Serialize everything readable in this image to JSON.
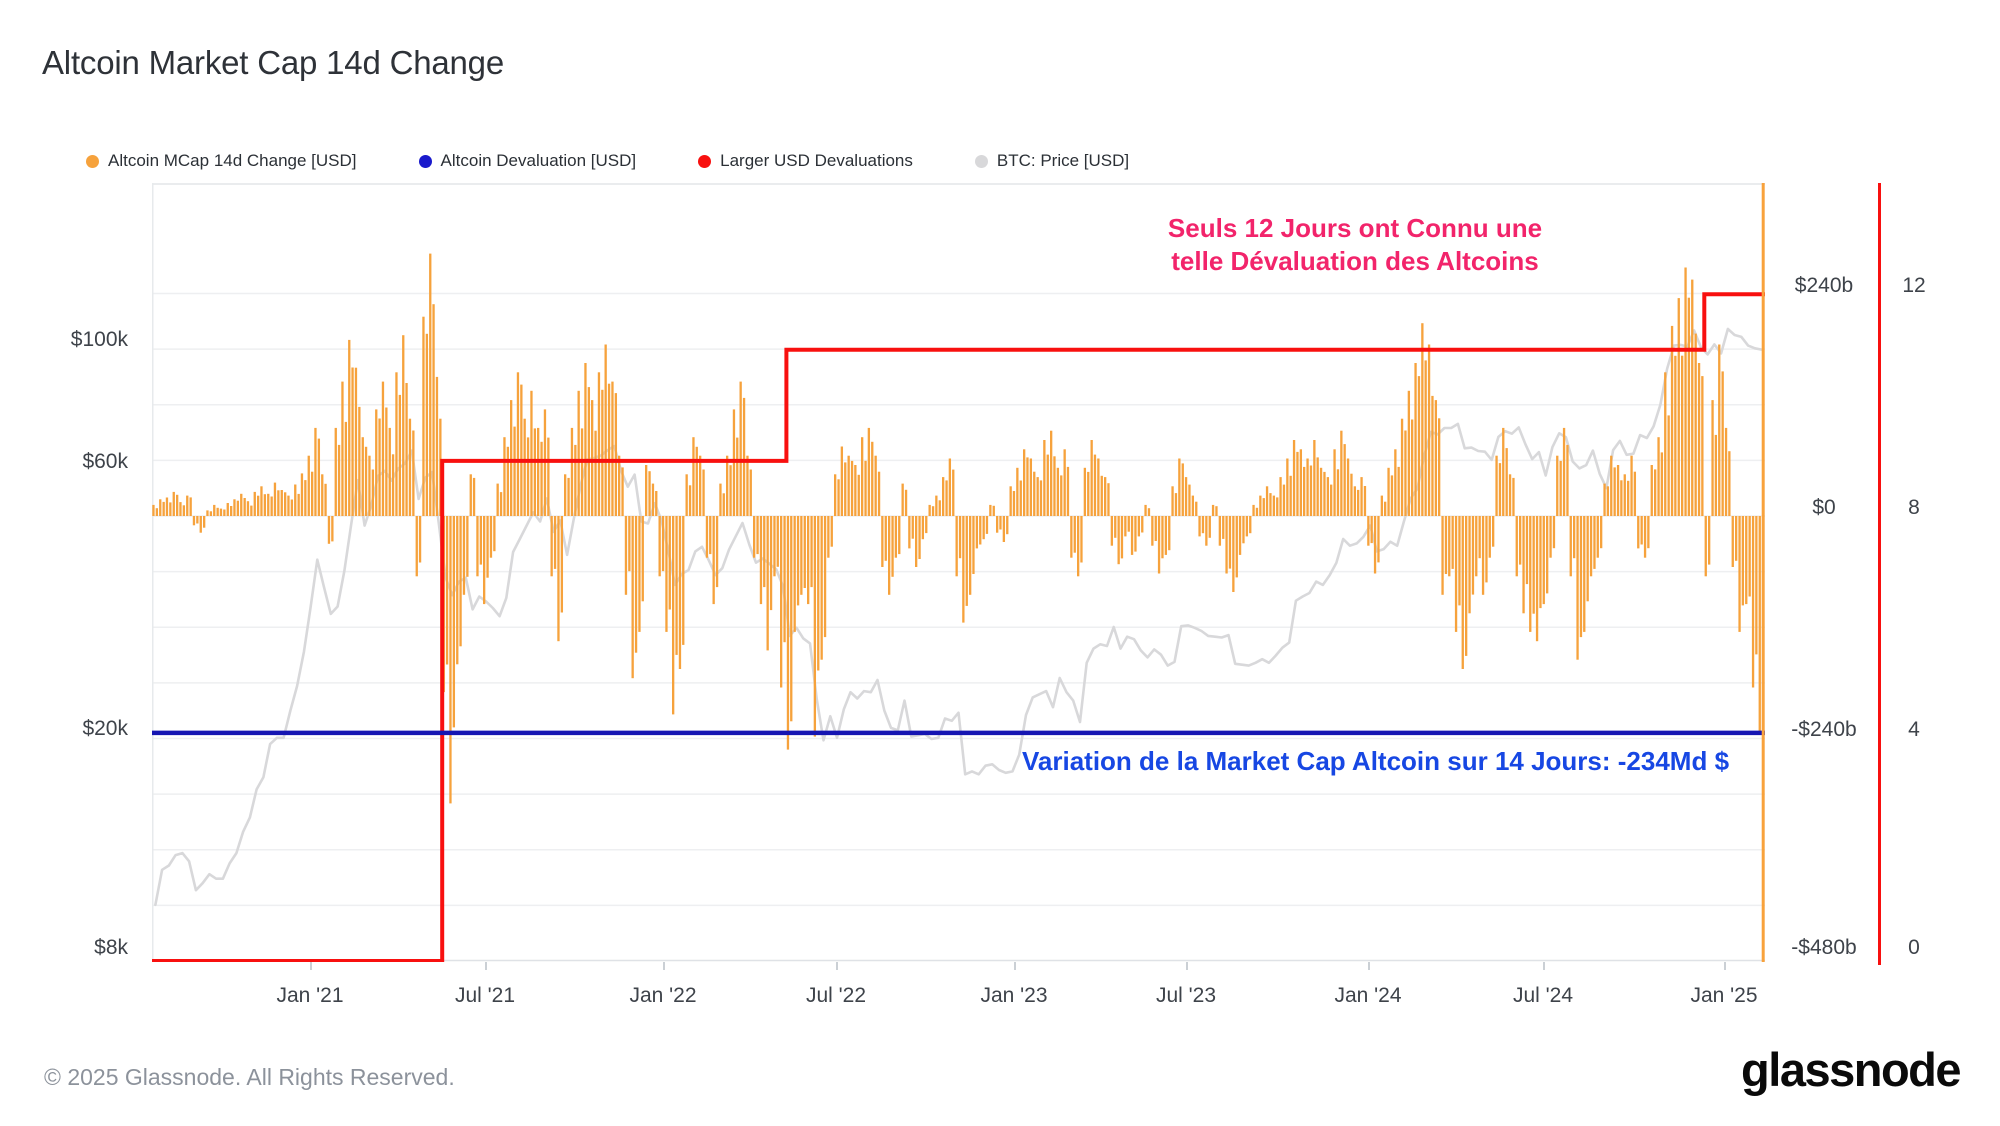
{
  "title": "Altcoin Market Cap 14d Change",
  "legend": {
    "items": [
      {
        "label": "Altcoin MCap 14d Change [USD]",
        "color": "#f6a23c"
      },
      {
        "label": "Altcoin Devaluation [USD]",
        "color": "#1a1acc"
      },
      {
        "label": "Larger USD Devaluations",
        "color": "#f8100f"
      },
      {
        "label": "BTC: Price [USD]",
        "color": "#d8d8da"
      }
    ]
  },
  "annotations": {
    "pink_line1": "Seuls 12 Jours ont Connu une",
    "pink_line2": "telle Dévaluation des Altcoins",
    "blue": "Variation de la Market Cap Altcoin sur 14 Jours: -234Md $",
    "pink_color": "#f2246b",
    "blue_color": "#1747e3"
  },
  "footer": {
    "copyright": "© 2025 Glassnode. All Rights Reserved.",
    "brand": "glassnode"
  },
  "chart_data": {
    "type": "combo",
    "x_range": {
      "start": "2020-07-24",
      "end": "2025-02-14",
      "step": "weekly"
    },
    "x_tick_labels": [
      "Jan '21",
      "Jul '21",
      "Jan '22",
      "Jul '22",
      "Jan '23",
      "Jul '23",
      "Jan '24",
      "Jul '24",
      "Jan '25"
    ],
    "axes": {
      "left_usd_log": {
        "label": "BTC: Price [USD]",
        "scale": "log",
        "ticks": [
          "$100k",
          "$60k",
          "$20k",
          "$8k"
        ],
        "values": [
          100000,
          60000,
          20000,
          8000
        ]
      },
      "right_usd_billions": {
        "label": "Altcoin MCap 14d Change [USD]",
        "ticks": [
          "$240b",
          "$0",
          "-$240b",
          "-$480b"
        ],
        "values": [
          240,
          0,
          -240,
          -480
        ],
        "gridline_interval_billions": 60
      },
      "right_count": {
        "label": "Larger USD Devaluations",
        "ticks": [
          "12",
          "8",
          "4",
          "0"
        ],
        "values": [
          12,
          8,
          4,
          0
        ]
      }
    },
    "series": [
      {
        "name": "Altcoin MCap 14d Change [USD]",
        "type": "bar",
        "axis": "right_usd_billions",
        "color": "#f6a23c",
        "values_billions_usd": [
          12,
          18,
          20,
          26,
          15,
          22,
          -10,
          -18,
          6,
          12,
          8,
          14,
          18,
          24,
          16,
          26,
          32,
          24,
          36,
          28,
          22,
          34,
          46,
          65,
          95,
          45,
          -30,
          95,
          145,
          190,
          160,
          85,
          65,
          115,
          145,
          95,
          155,
          195,
          105,
          -65,
          215,
          283,
          150,
          -190,
          -310,
          -160,
          -85,
          45,
          -65,
          -95,
          -45,
          35,
          85,
          125,
          155,
          105,
          135,
          95,
          115,
          -65,
          -135,
          45,
          95,
          135,
          165,
          125,
          155,
          185,
          145,
          65,
          -85,
          -175,
          -125,
          55,
          35,
          -65,
          -125,
          -214,
          -165,
          45,
          85,
          65,
          -45,
          -95,
          35,
          65,
          115,
          145,
          65,
          -45,
          -95,
          -145,
          -65,
          -185,
          -252,
          -125,
          -85,
          -95,
          -238,
          -155,
          -45,
          45,
          75,
          65,
          55,
          85,
          95,
          65,
          -55,
          -85,
          -45,
          35,
          -35,
          -55,
          -25,
          12,
          22,
          42,
          62,
          -65,
          -115,
          -85,
          -35,
          -25,
          12,
          -18,
          -28,
          32,
          52,
          72,
          62,
          42,
          82,
          92,
          52,
          72,
          -45,
          -65,
          52,
          82,
          62,
          42,
          -32,
          -52,
          -22,
          -42,
          -22,
          12,
          -32,
          -62,
          -42,
          32,
          62,
          42,
          22,
          -22,
          -32,
          12,
          -32,
          -62,
          -82,
          -42,
          -22,
          12,
          22,
          32,
          22,
          42,
          62,
          82,
          72,
          62,
          82,
          52,
          42,
          72,
          92,
          62,
          32,
          42,
          -32,
          -62,
          22,
          52,
          72,
          105,
          135,
          165,
          208,
          185,
          125,
          -85,
          -65,
          -125,
          -165,
          -105,
          -65,
          -85,
          -45,
          65,
          95,
          45,
          -65,
          -105,
          -125,
          -135,
          -95,
          -45,
          65,
          95,
          -65,
          -155,
          -125,
          -65,
          -45,
          35,
          65,
          55,
          45,
          65,
          -35,
          -45,
          55,
          85,
          155,
          205,
          235,
          268,
          255,
          165,
          -65,
          125,
          185,
          95,
          -55,
          -125,
          -95,
          -185,
          -234
        ]
      },
      {
        "name": "Altcoin Devaluation [USD]",
        "type": "hline",
        "axis": "right_usd_billions",
        "color": "#1515b2",
        "value_billions_usd": -234
      },
      {
        "name": "Larger USD Devaluations",
        "type": "step",
        "axis": "right_count",
        "color": "#f8100f",
        "steps": [
          {
            "week_index": 0,
            "date": "2020-07-24",
            "count": 0
          },
          {
            "week_index": 43,
            "date": "2021-05-21",
            "count": 9
          },
          {
            "week_index": 94,
            "date": "2022-05-13",
            "count": 11
          },
          {
            "week_index": 230,
            "date": "2024-12-27",
            "count": 12
          }
        ],
        "final_count": 12
      },
      {
        "name": "BTC: Price [USD]",
        "type": "line",
        "axis": "left_usd_log",
        "color": "#d8d8da",
        "values_usd_thousands": [
          9.6,
          11.1,
          11.3,
          11.8,
          11.9,
          11.5,
          10.2,
          10.5,
          10.9,
          10.7,
          10.7,
          11.4,
          11.9,
          13.0,
          13.8,
          15.5,
          16.3,
          18.7,
          19.2,
          19.2,
          21.5,
          23.8,
          27.4,
          33.0,
          40.2,
          35.8,
          32.1,
          33.1,
          38.3,
          46.4,
          55.9,
          46.3,
          50.4,
          56.9,
          58.1,
          55.8,
          58.7,
          59.9,
          63.2,
          51.7,
          56.5,
          57.8,
          46.7,
          37.3,
          34.7,
          36.7,
          37.3,
          32.7,
          34.5,
          33.8,
          32.9,
          31.8,
          34.3,
          41.5,
          43.8,
          46.3,
          48.9,
          47.1,
          51.8,
          45.1,
          47.3,
          41.0,
          47.6,
          54.7,
          60.9,
          61.3,
          61.9,
          63.3,
          64.4,
          58.1,
          54.4,
          57.2,
          47.1,
          46.7,
          50.8,
          47.3,
          41.7,
          36.2,
          37.9,
          38.5,
          41.6,
          42.4,
          40.1,
          37.7,
          38.8,
          41.9,
          44.3,
          46.8,
          42.8,
          39.7,
          40.4,
          39.5,
          38.6,
          36.0,
          29.3,
          30.3,
          29.0,
          28.4,
          22.5,
          19.0,
          21.0,
          19.2,
          21.6,
          23.2,
          22.6,
          23.3,
          23.2,
          24.4,
          21.5,
          20.0,
          19.8,
          22.4,
          19.3,
          19.4,
          19.5,
          19.1,
          19.2,
          20.8,
          20.6,
          21.3,
          16.5,
          16.7,
          16.5,
          17.1,
          17.2,
          16.8,
          16.6,
          16.7,
          17.9,
          21.1,
          22.7,
          23.0,
          23.3,
          21.8,
          24.6,
          23.2,
          22.4,
          20.5,
          26.2,
          27.8,
          28.3,
          28.1,
          30.4,
          27.8,
          29.2,
          28.9,
          27.6,
          26.8,
          27.7,
          27.1,
          25.9,
          26.3,
          30.5,
          30.6,
          30.3,
          29.9,
          29.3,
          29.2,
          29.1,
          29.4,
          26.1,
          26.0,
          25.9,
          26.2,
          26.6,
          26.2,
          27.0,
          27.9,
          28.5,
          33.9,
          34.5,
          35.0,
          36.7,
          36.2,
          37.7,
          39.7,
          43.8,
          42.6,
          43.0,
          44.2,
          46.3,
          41.6,
          42.0,
          43.3,
          42.6,
          47.1,
          51.8,
          54.0,
          61.9,
          68.3,
          67.6,
          69.4,
          69.4,
          70.6,
          63.8,
          64.0,
          63.1,
          62.9,
          60.8,
          66.9,
          68.5,
          67.8,
          69.6,
          64.9,
          61.0,
          62.8,
          57.0,
          64.1,
          67.9,
          66.8,
          60.4,
          58.7,
          59.5,
          63.2,
          57.4,
          54.1,
          63.3,
          65.8,
          62.1,
          62.4,
          67.4,
          66.6,
          69.9,
          76.5,
          88.7,
          97.7,
          98.0,
          97.3,
          104.0,
          97.0,
          94.2,
          98.2,
          94.6,
          104.7,
          102.1,
          101.3,
          97.7,
          96.6,
          96.1
        ]
      }
    ]
  }
}
